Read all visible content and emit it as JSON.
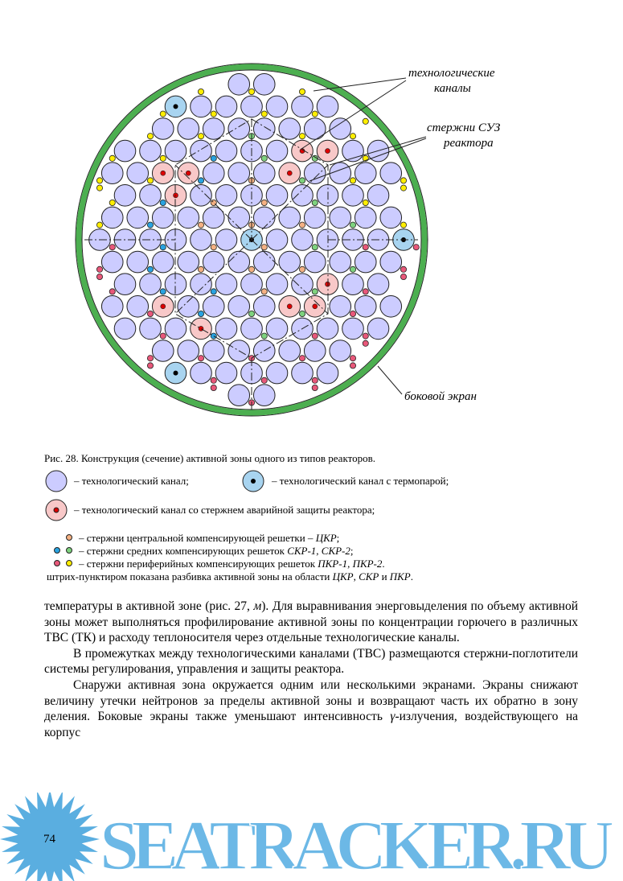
{
  "figure": {
    "labels": {
      "channels": [
        "технологические",
        "каналы"
      ],
      "rods": [
        "стержни СУЗ",
        "реактора"
      ],
      "screen": [
        "боковой экран"
      ]
    },
    "caption": "Рис. 28. Конструкция (сечение) активной зоны одного из типов реакторов.",
    "legend": {
      "channel": "– технологический канал;",
      "thermo": "– технологический канал с термопарой;",
      "emergency": "– технологический канал со стержнем аварийной защиты реактора;",
      "rows": [
        [
          "– стержни центральной компенсирующей решетки – ",
          "ЦКР",
          ";"
        ],
        [
          "– стержни средних компенсирующих решеток ",
          "СКР-1",
          ", ",
          "СКР-2",
          ";"
        ],
        [
          "– стержни периферийных компенсирующих решеток ",
          "ПКР-1",
          ", ",
          "ПКР-2",
          "."
        ],
        [
          "штрих-пунктиром показана разбивка активной зоны на области ",
          "ЦКР",
          ", ",
          "СКР",
          " и ",
          "ПКР",
          "."
        ]
      ]
    }
  },
  "body": {
    "paragraphs": [
      [
        "температуры в активной зоне (рис. 27, ",
        "м",
        "). Для выравнивания энерговыделения по объему активной зоны может выполняться профилирование активной зоны по концентрации горючего в различных ТВС (ТК) и расходу теплоносителя через отдельные технологические каналы."
      ],
      [
        "В промежутках между технологическими каналами (ТВС) размещаются стержни-поглотители системы регулирования, управления и защиты реактора."
      ],
      [
        "Снаружи активная зона окружается одним или несколькими экранами. Экраны снижают величину утечки нейтронов за пределы активной зоны и возвращают часть их обратно в зону деления. Боковые экраны также уменьшают интенсивность ",
        "γ",
        "-излучения, воздействующего на корпус"
      ]
    ]
  },
  "footer": {
    "page_number": "74",
    "watermark": "SEATRACKER.RU"
  }
}
